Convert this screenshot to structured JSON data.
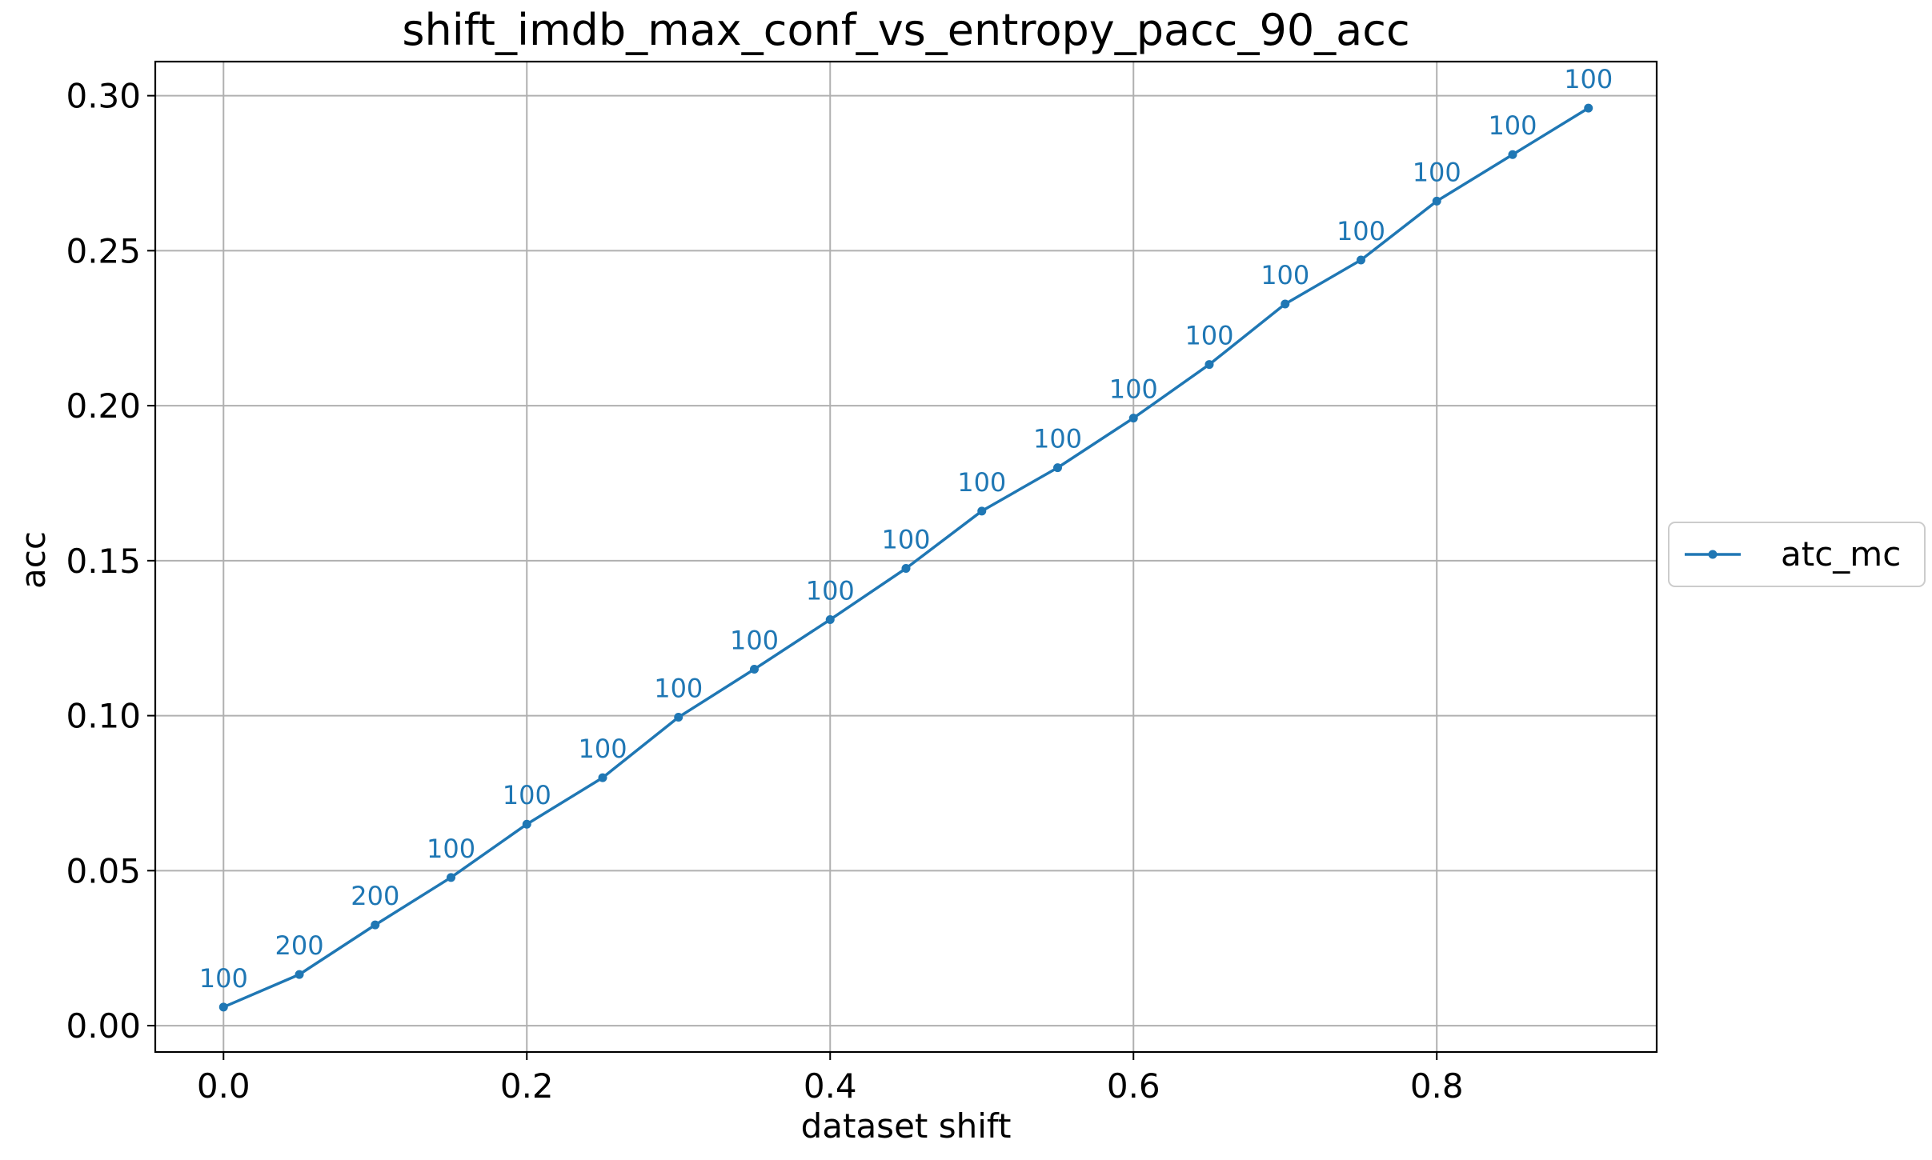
{
  "chart_data": {
    "type": "line",
    "title": "shift_imdb_max_conf_vs_entropy_pacc_90_acc",
    "xlabel": "dataset shift",
    "ylabel": "acc",
    "xlim": [
      -0.045,
      0.945
    ],
    "ylim": [
      -0.0085,
      0.311
    ],
    "xticks": [
      0.0,
      0.2,
      0.4,
      0.6,
      0.8
    ],
    "xtick_labels": [
      "0.0",
      "0.2",
      "0.4",
      "0.6",
      "0.8"
    ],
    "yticks": [
      0.0,
      0.05,
      0.1,
      0.15,
      0.2,
      0.25,
      0.3
    ],
    "ytick_labels": [
      "0.00",
      "0.05",
      "0.10",
      "0.15",
      "0.20",
      "0.25",
      "0.30"
    ],
    "grid": true,
    "legend_position": "right-outside",
    "series": [
      {
        "name": "atc_mc",
        "color": "#1f77b4",
        "marker": "circle",
        "x": [
          0.0,
          0.05,
          0.1,
          0.15,
          0.2,
          0.25,
          0.3,
          0.35,
          0.4,
          0.45,
          0.5,
          0.55,
          0.6,
          0.65,
          0.7,
          0.75,
          0.8,
          0.85,
          0.9
        ],
        "y": [
          0.006,
          0.0165,
          0.0325,
          0.0478,
          0.065,
          0.08,
          0.0995,
          0.115,
          0.131,
          0.1475,
          0.166,
          0.18,
          0.196,
          0.2133,
          0.2328,
          0.247,
          0.266,
          0.281,
          0.296
        ],
        "labels": [
          "100",
          "200",
          "200",
          "100",
          "100",
          "100",
          "100",
          "100",
          "100",
          "100",
          "100",
          "100",
          "100",
          "100",
          "100",
          "100",
          "100",
          "100",
          "100"
        ]
      }
    ]
  }
}
